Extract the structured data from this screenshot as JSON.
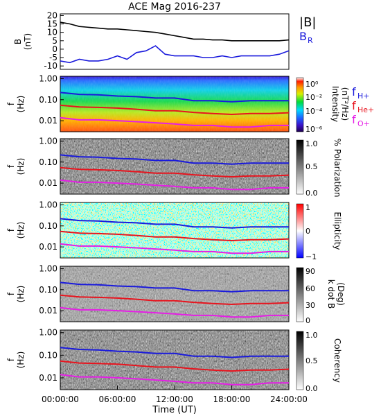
{
  "figure": {
    "title": "ACE Mag 2016-237",
    "xlabel": "Time (UT)",
    "xticks": [
      "00:00:00",
      "06:00:00",
      "12:00:00",
      "18:00:00",
      "24:00:00"
    ]
  },
  "legends": {
    "b_total": "|B|",
    "b_r": "B",
    "b_r_sub": "R",
    "f_h": "f",
    "f_h_sub": "H+",
    "f_he": "f",
    "f_he_sub": "He+",
    "f_o": "f",
    "f_o_sub": "O+"
  },
  "panels": {
    "b": {
      "ylabel1": "B",
      "ylabel2": "(nT)",
      "yticks": [
        "20",
        "15",
        "10",
        "5",
        "0",
        "-5",
        "-10"
      ]
    },
    "f_ylabel1": "f",
    "f_ylabel2": "(Hz)",
    "f_yticks": [
      "1.00",
      "0.10",
      "0.01"
    ],
    "intensity": {
      "cb_label1": "Intensity",
      "cb_label2": "(nT²/Hz)",
      "cb_ticks": [
        "10⁰",
        "10⁻²",
        "10⁻⁴",
        "10⁻⁶"
      ]
    },
    "polarization": {
      "cb_label": "% Polarization",
      "cb_ticks": [
        "1.0",
        "0.5",
        "0.0"
      ]
    },
    "ellipticity": {
      "cb_label": "Ellipticity",
      "cb_ticks": [
        "1",
        "0",
        "−1"
      ]
    },
    "kdotb": {
      "cb_label1": "k dot B",
      "cb_label2": "(Deg)",
      "cb_ticks": [
        "90",
        "60",
        "30",
        "0"
      ]
    },
    "coherency": {
      "cb_label": "Coherency",
      "cb_ticks": [
        "1.0",
        "0.5",
        "0.0"
      ]
    }
  },
  "colors": {
    "b_total": "#000000",
    "b_r": "#1a1adc",
    "f_h": "#1a1adc",
    "f_he": "#e8141e",
    "f_o": "#e61ee6"
  },
  "chart_data": [
    {
      "type": "line",
      "title": "ACE Mag 2016-237",
      "xlabel": "Time (UT)",
      "ylabel": "B (nT)",
      "xlim": [
        0,
        24
      ],
      "ylim": [
        -12,
        21
      ],
      "x": [
        0,
        1,
        2,
        3,
        4,
        5,
        6,
        7,
        8,
        9,
        10,
        11,
        12,
        13,
        14,
        15,
        16,
        17,
        18,
        19,
        20,
        21,
        22,
        23,
        24
      ],
      "series": [
        {
          "name": "|B|",
          "values": [
            16,
            15,
            13.5,
            13,
            12.5,
            12,
            12,
            11.5,
            11,
            10.5,
            10,
            9,
            8,
            7,
            6,
            6,
            5.5,
            5.5,
            5,
            5,
            5,
            5,
            5,
            5,
            5.5
          ]
        },
        {
          "name": "BR",
          "values": [
            -7,
            -8,
            -6,
            -7,
            -7,
            -6,
            -4,
            -6,
            -2,
            -1,
            2,
            -3,
            -4,
            -4,
            -4,
            -5,
            -5,
            -4,
            -5,
            -4,
            -4,
            -4,
            -4,
            -3,
            -1
          ]
        }
      ]
    },
    {
      "type": "heatmap",
      "ylabel": "f (Hz)",
      "ylim": [
        0.003,
        1.3
      ],
      "y_scale": "log",
      "colorbar": "Intensity (nT²/Hz)",
      "colorbar_range": [
        1e-06,
        1
      ],
      "x": [
        0,
        2,
        4,
        6,
        8,
        10,
        12,
        14,
        16,
        18,
        20,
        22,
        24
      ],
      "series": [
        {
          "name": "fH+",
          "values": [
            0.22,
            0.18,
            0.17,
            0.15,
            0.14,
            0.12,
            0.12,
            0.09,
            0.09,
            0.08,
            0.09,
            0.09,
            0.09
          ]
        },
        {
          "name": "fHe+",
          "values": [
            0.055,
            0.045,
            0.043,
            0.04,
            0.035,
            0.03,
            0.03,
            0.025,
            0.022,
            0.02,
            0.022,
            0.022,
            0.024
          ]
        },
        {
          "name": "fO+",
          "values": [
            0.014,
            0.011,
            0.011,
            0.01,
            0.009,
            0.008,
            0.007,
            0.006,
            0.006,
            0.005,
            0.005,
            0.006,
            0.006
          ]
        }
      ]
    },
    {
      "type": "heatmap",
      "ylabel": "f (Hz)",
      "y_scale": "log",
      "colorbar": "% Polarization",
      "colorbar_range": [
        0,
        1
      ]
    },
    {
      "type": "heatmap",
      "ylabel": "f (Hz)",
      "y_scale": "log",
      "colorbar": "Ellipticity",
      "colorbar_range": [
        -1,
        1
      ]
    },
    {
      "type": "heatmap",
      "ylabel": "f (Hz)",
      "y_scale": "log",
      "colorbar": "k dot B (Deg)",
      "colorbar_range": [
        0,
        90
      ]
    },
    {
      "type": "heatmap",
      "ylabel": "f (Hz)",
      "y_scale": "log",
      "colorbar": "Coherency",
      "colorbar_range": [
        0,
        1
      ]
    }
  ]
}
